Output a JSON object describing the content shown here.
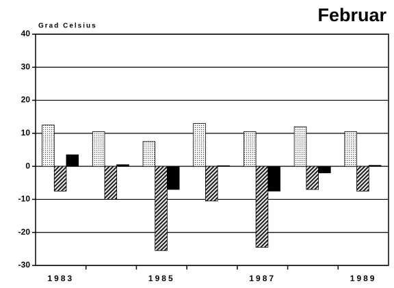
{
  "chart_data": {
    "type": "bar",
    "title": "Februar",
    "y_label": "Grad Celsius",
    "categories": [
      "1983",
      null,
      "1985",
      null,
      "1987",
      null,
      "1989"
    ],
    "series": [
      {
        "color": "#d0d0d0",
        "pattern": "dots",
        "values": [
          12.5,
          10.5,
          7.5,
          13,
          10.5,
          12,
          10.5
        ]
      },
      {
        "color": "#606060",
        "pattern": "hatch",
        "values": [
          -7.5,
          -10,
          -25.5,
          -10.5,
          -24.5,
          -7,
          -7.5
        ]
      },
      {
        "color": "#000000",
        "pattern": "solid",
        "values": [
          3.5,
          0.5,
          -7,
          0.2,
          -7.5,
          -2,
          0.3
        ]
      }
    ],
    "ylim": [
      -30,
      40
    ],
    "yticks": [
      -30,
      -20,
      -10,
      0,
      10,
      20,
      30,
      40
    ],
    "grid": true
  }
}
